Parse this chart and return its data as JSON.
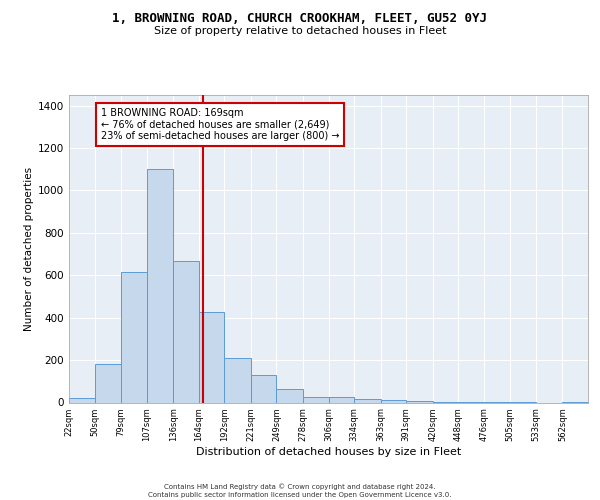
{
  "title": "1, BROWNING ROAD, CHURCH CROOKHAM, FLEET, GU52 0YJ",
  "subtitle": "Size of property relative to detached houses in Fleet",
  "xlabel": "Distribution of detached houses by size in Fleet",
  "ylabel": "Number of detached properties",
  "bar_color": "#c5d8ec",
  "bar_edge_color": "#5b9bd5",
  "background_color": "#e8eef5",
  "grid_color": "#ffffff",
  "red_line_x": 169,
  "annotation_text": "1 BROWNING ROAD: 169sqm\n← 76% of detached houses are smaller (2,649)\n23% of semi-detached houses are larger (800) →",
  "annotation_box_color": "#ffffff",
  "annotation_box_edge": "#cc0000",
  "footer": "Contains HM Land Registry data © Crown copyright and database right 2024.\nContains public sector information licensed under the Open Government Licence v3.0.",
  "bin_edges": [
    22,
    50,
    79,
    107,
    136,
    164,
    192,
    221,
    249,
    278,
    306,
    334,
    363,
    391,
    420,
    448,
    476,
    505,
    533,
    562,
    590
  ],
  "bar_heights": [
    20,
    180,
    615,
    1100,
    665,
    425,
    210,
    130,
    65,
    28,
    28,
    18,
    10,
    5,
    3,
    2,
    1,
    1,
    0,
    1
  ],
  "ylim": [
    0,
    1450
  ],
  "yticks": [
    0,
    200,
    400,
    600,
    800,
    1000,
    1200,
    1400
  ],
  "title_fontsize": 9.0,
  "subtitle_fontsize": 8.0,
  "ylabel_fontsize": 7.5,
  "xlabel_fontsize": 8.0,
  "ytick_fontsize": 7.5,
  "xtick_fontsize": 6.0,
  "annotation_fontsize": 7.0,
  "footer_fontsize": 5.0
}
